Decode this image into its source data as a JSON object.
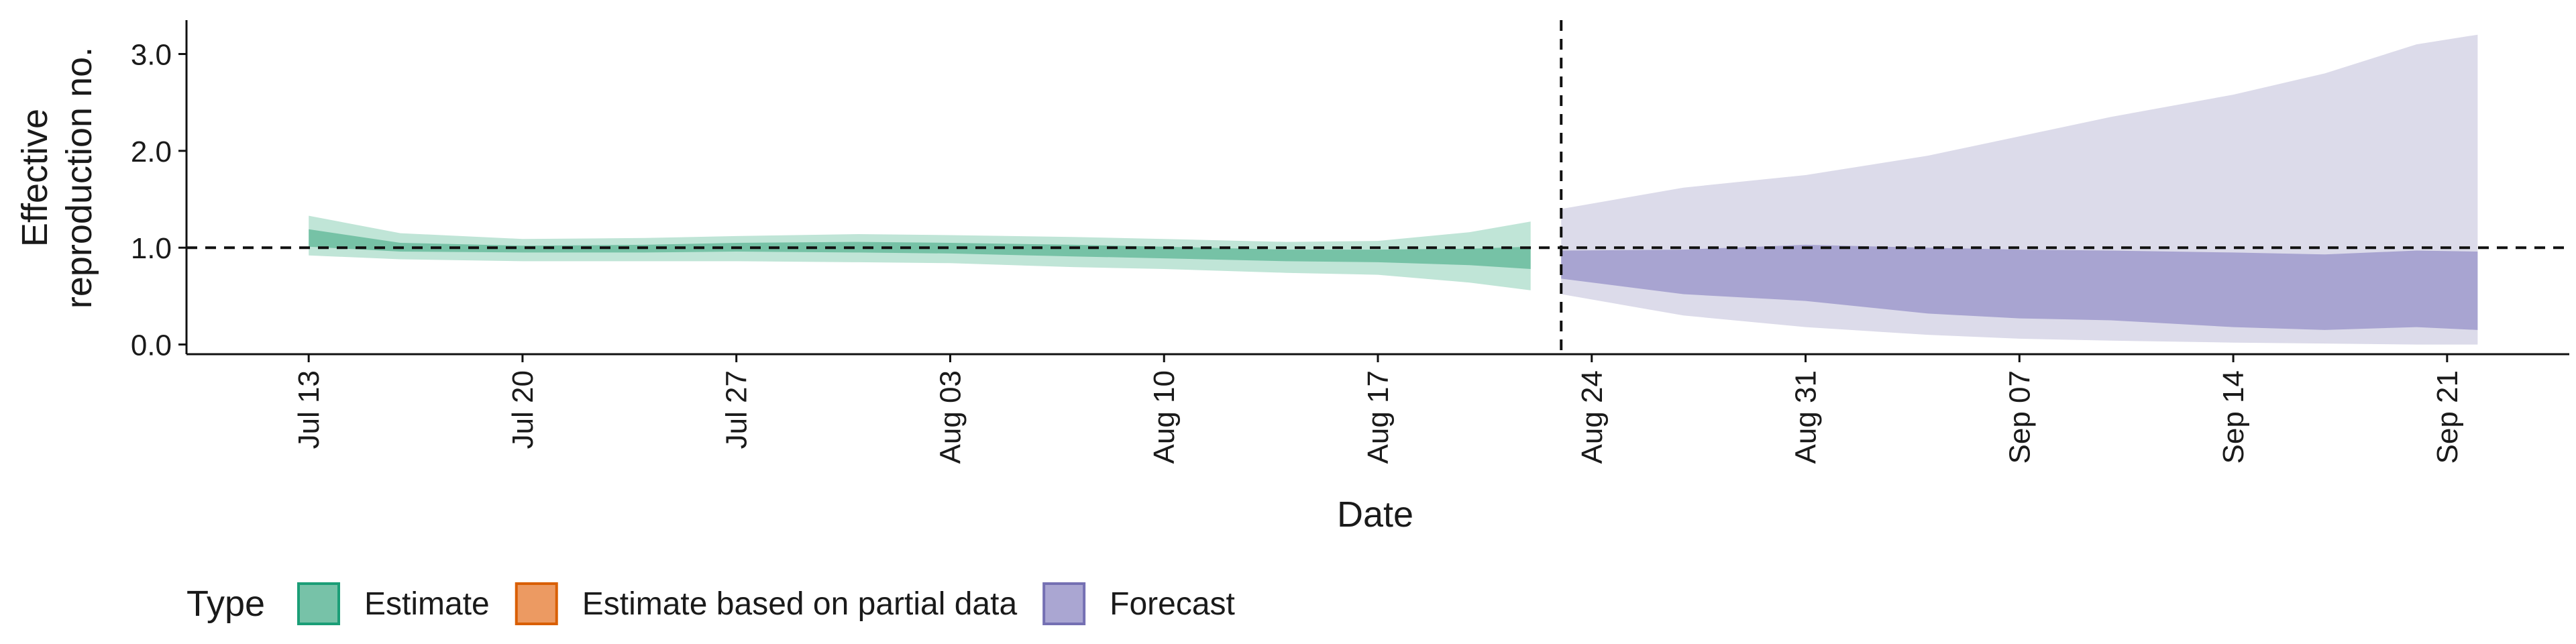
{
  "chart_data": {
    "type": "area",
    "title": "",
    "xlabel": "Date",
    "ylabel_lines": [
      "Effective",
      "reproduction no."
    ],
    "ylim": [
      -0.1,
      3.35
    ],
    "yticks": [
      0.0,
      1.0,
      2.0,
      3.0
    ],
    "ytick_labels": [
      "0.0",
      "1.0",
      "2.0",
      "3.0"
    ],
    "xlim": [
      "2021-07-09",
      "2021-09-25"
    ],
    "xticks": [
      "2021-07-13",
      "2021-07-20",
      "2021-07-27",
      "2021-08-03",
      "2021-08-10",
      "2021-08-17",
      "2021-08-24",
      "2021-08-31",
      "2021-09-07",
      "2021-09-14",
      "2021-09-21"
    ],
    "xtick_labels": [
      "Jul 13",
      "Jul 20",
      "Jul 27",
      "Aug 03",
      "Aug 10",
      "Aug 17",
      "Aug 24",
      "Aug 31",
      "Sep 07",
      "Sep 14",
      "Sep 21"
    ],
    "reference_line_y": 1.0,
    "forecast_date_line": "2021-08-23",
    "legend": {
      "title": "Type",
      "position": "bottom",
      "items": [
        {
          "label": "Estimate",
          "fill": "#77c2a8",
          "stroke": "#1b9e77"
        },
        {
          "label": "Estimate based on partial data",
          "fill": "#ec9a62",
          "stroke": "#d95f02"
        },
        {
          "label": "Forecast",
          "fill": "#aaa6d2",
          "stroke": "#7570b3"
        }
      ]
    },
    "series": [
      {
        "name": "Estimate",
        "color_outer": "#c0e5d7",
        "color_inner": "#76c2a6",
        "x": [
          "2021-07-13",
          "2021-07-16",
          "2021-07-20",
          "2021-07-24",
          "2021-07-27",
          "2021-07-31",
          "2021-08-03",
          "2021-08-07",
          "2021-08-10",
          "2021-08-14",
          "2021-08-17",
          "2021-08-20",
          "2021-08-22"
        ],
        "outer_lower": [
          0.92,
          0.88,
          0.86,
          0.86,
          0.86,
          0.85,
          0.84,
          0.8,
          0.78,
          0.74,
          0.72,
          0.64,
          0.56
        ],
        "outer_upper": [
          1.33,
          1.15,
          1.09,
          1.1,
          1.12,
          1.14,
          1.13,
          1.11,
          1.09,
          1.06,
          1.07,
          1.16,
          1.27
        ],
        "inner_lower": [
          1.01,
          0.96,
          0.95,
          0.95,
          0.96,
          0.95,
          0.94,
          0.91,
          0.89,
          0.86,
          0.85,
          0.82,
          0.78
        ],
        "inner_upper": [
          1.19,
          1.05,
          1.02,
          1.03,
          1.05,
          1.06,
          1.05,
          1.03,
          1.01,
          0.98,
          0.98,
          0.99,
          1.01
        ]
      },
      {
        "name": "Forecast",
        "color_outer": "#dcdbea",
        "color_inner": "#a8a4d1",
        "x": [
          "2021-08-23",
          "2021-08-27",
          "2021-08-31",
          "2021-09-04",
          "2021-09-07",
          "2021-09-10",
          "2021-09-14",
          "2021-09-17",
          "2021-09-20",
          "2021-09-22"
        ],
        "outer_lower": [
          0.52,
          0.3,
          0.18,
          0.1,
          0.06,
          0.04,
          0.02,
          0.01,
          0.0,
          0.0
        ],
        "outer_upper": [
          1.4,
          1.62,
          1.75,
          1.95,
          2.15,
          2.35,
          2.58,
          2.8,
          3.1,
          3.2
        ],
        "inner_lower": [
          0.68,
          0.52,
          0.45,
          0.32,
          0.27,
          0.25,
          0.18,
          0.15,
          0.18,
          0.15
        ],
        "inner_upper": [
          0.97,
          0.98,
          1.03,
          1.0,
          0.98,
          0.97,
          0.95,
          0.93,
          0.97,
          0.96
        ]
      }
    ]
  }
}
